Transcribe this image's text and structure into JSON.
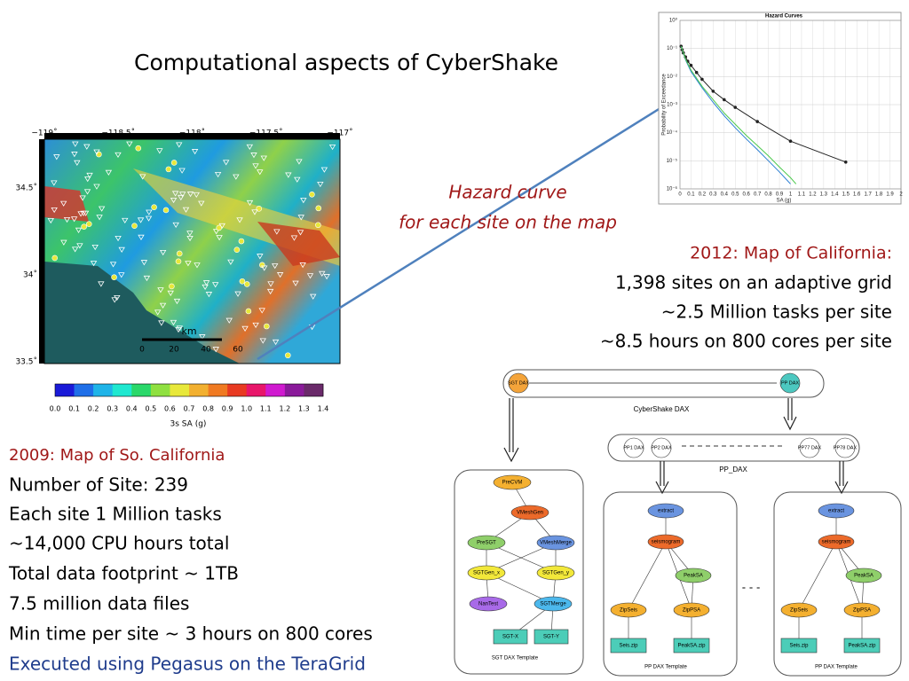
{
  "title": "Computational aspects of CyberShake",
  "hazard_caption": [
    "Hazard curve",
    "for each site on the map"
  ],
  "ca_2012": {
    "heading": "2012:  Map of California:",
    "lines": [
      "1,398 sites on an adaptive grid",
      "~2.5 Million tasks per site",
      "~8.5 hours on 800 cores per site"
    ]
  },
  "so_cal_2009": {
    "heading": "2009: Map of So. California",
    "lines": [
      "Number of Site: 239",
      "Each site 1 Million tasks",
      "~14,000 CPU hours total",
      "Total data footprint ~ 1TB",
      "7.5 million data files",
      "Min time per site ~ 3 hours on 800 cores"
    ],
    "footer": "Executed using Pegasus on the TeraGrid"
  },
  "map": {
    "lon_labels": [
      "−119˚",
      "−118.5˚",
      "−118˚",
      "−117.5˚",
      "−117˚"
    ],
    "lat_labels": [
      "34.5˚",
      "34˚",
      "33.5˚"
    ],
    "scale_unit": "km",
    "scale_labels": [
      "0",
      "20",
      "40",
      "60"
    ],
    "colorbar_labels": [
      "0.0",
      "0.1",
      "0.2",
      "0.3",
      "0.4",
      "0.5",
      "0.6",
      "0.7",
      "0.8",
      "0.9",
      "1.0",
      "1.1",
      "1.2",
      "1.3",
      "1.4"
    ],
    "colorbar_title": "3s SA (g)"
  },
  "chart_data": {
    "type": "line",
    "title": "Hazard Curves",
    "x_label": "SA (g)",
    "y_label": "Probability of Exceedance",
    "log_y": true,
    "grid": true,
    "xlim": [
      0,
      2
    ],
    "ylim": [
      1e-06,
      1
    ],
    "xticks": [
      0,
      0.1,
      0.2,
      0.3,
      0.4,
      0.5,
      0.6,
      0.7,
      0.8,
      0.9,
      1,
      1.1,
      1.2,
      1.3,
      1.4,
      1.5,
      1.6,
      1.7,
      1.8,
      1.9,
      2
    ],
    "yticks": [
      {
        "value": 1,
        "label": "10⁰"
      },
      {
        "value": 0.1,
        "label": "10⁻¹"
      },
      {
        "value": 0.01,
        "label": "10⁻²"
      },
      {
        "value": 0.001,
        "label": "10⁻³"
      },
      {
        "value": 0.0001,
        "label": "10⁻⁴"
      },
      {
        "value": 1e-05,
        "label": "10⁻⁵"
      },
      {
        "value": 1e-06,
        "label": "10⁻⁶"
      }
    ],
    "series": [
      {
        "color": "#222222",
        "markers": true,
        "x": [
          0.01,
          0.02,
          0.03,
          0.05,
          0.07,
          0.1,
          0.15,
          0.2,
          0.3,
          0.4,
          0.5,
          0.7,
          1.0,
          1.5
        ],
        "values": [
          0.12,
          0.09,
          0.07,
          0.05,
          0.035,
          0.025,
          0.014,
          0.008,
          0.003,
          0.0015,
          0.0008,
          0.00025,
          5e-05,
          9e-06
        ]
      },
      {
        "color": "#2a7fd4",
        "markers": false,
        "x": [
          0.01,
          0.05,
          0.1,
          0.2,
          0.3,
          0.4,
          0.5,
          0.6,
          0.7,
          0.8,
          0.9,
          1.0
        ],
        "values": [
          0.12,
          0.04,
          0.015,
          0.004,
          0.0012,
          0.0004,
          0.00015,
          6e-05,
          2.5e-05,
          1e-05,
          4e-06,
          1.5e-06
        ]
      },
      {
        "color": "#4cc94c",
        "markers": false,
        "x": [
          0.01,
          0.05,
          0.1,
          0.2,
          0.3,
          0.4,
          0.5,
          0.6,
          0.7,
          0.8,
          0.9,
          1.0,
          1.05
        ],
        "values": [
          0.12,
          0.042,
          0.017,
          0.0045,
          0.0015,
          0.0005,
          0.0002,
          8e-05,
          3.5e-05,
          1.5e-05,
          6e-06,
          2.5e-06,
          1.5e-06
        ]
      }
    ]
  },
  "cybershake_dax": {
    "label": "CyberShake DAX",
    "nodes": [
      "SGT DAX",
      "PP DAX"
    ]
  },
  "pp_dax": {
    "label": "PP_DAX",
    "nodes": [
      "PP1 DAX",
      "PP2 DAX",
      "PP77 DAX",
      "PP78 DAX"
    ]
  },
  "sgt_template": {
    "label": "SGT DAX Template",
    "nodes": [
      "PreCVM",
      "VMeshGen",
      "PreSGT",
      "VMeshMerge",
      "SGTGen_x",
      "SGTGen_y",
      "NanTest",
      "SGTMerge",
      "SGT-X",
      "SGT-Y"
    ]
  },
  "pp_templates": [
    {
      "label": "PP DAX Template",
      "nodes": [
        "extract",
        "seismogram",
        "PeakSA",
        "ZipSeis",
        "ZipPSA",
        "Seis.zip",
        "PeakSA.zip"
      ]
    },
    {
      "label": "PP DAX Template",
      "nodes": [
        "extract",
        "seismogram",
        "PeakSA",
        "ZipSeis",
        "ZipPSA",
        "Seis.zip",
        "PeakSA.zip"
      ]
    }
  ]
}
